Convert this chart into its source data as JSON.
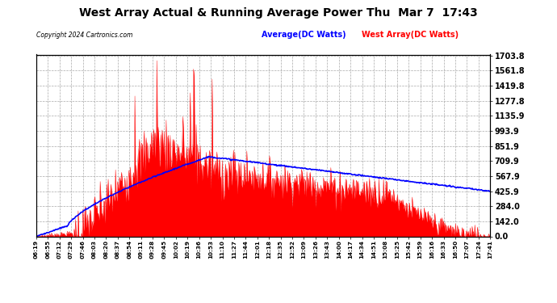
{
  "title": "West Array Actual & Running Average Power Thu  Mar 7  17:43",
  "copyright": "Copyright 2024 Cartronics.com",
  "legend_avg": "Average(DC Watts)",
  "legend_west": "West Array(DC Watts)",
  "yticks": [
    0.0,
    142.0,
    284.0,
    425.9,
    567.9,
    709.9,
    851.9,
    993.9,
    1135.9,
    1277.8,
    1419.8,
    1561.8,
    1703.8
  ],
  "ymax": 1703.8,
  "ymin": 0.0,
  "bg_color": "#ffffff",
  "plot_bg": "#ffffff",
  "grid_color": "#aaaaaa",
  "title_color": "#000000",
  "fill_color": "#ff0000",
  "avg_line_color": "#0000ff",
  "west_line_color": "#ff0000",
  "xtick_labels": [
    "06:19",
    "06:55",
    "07:12",
    "07:29",
    "07:46",
    "08:03",
    "08:20",
    "08:37",
    "08:54",
    "09:11",
    "09:28",
    "09:45",
    "10:02",
    "10:19",
    "10:36",
    "10:53",
    "11:10",
    "11:27",
    "11:44",
    "12:01",
    "12:18",
    "12:35",
    "12:52",
    "13:09",
    "13:26",
    "13:43",
    "14:00",
    "14:17",
    "14:34",
    "14:51",
    "15:08",
    "15:25",
    "15:42",
    "15:59",
    "16:16",
    "16:33",
    "16:50",
    "17:07",
    "17:24",
    "17:41"
  ]
}
